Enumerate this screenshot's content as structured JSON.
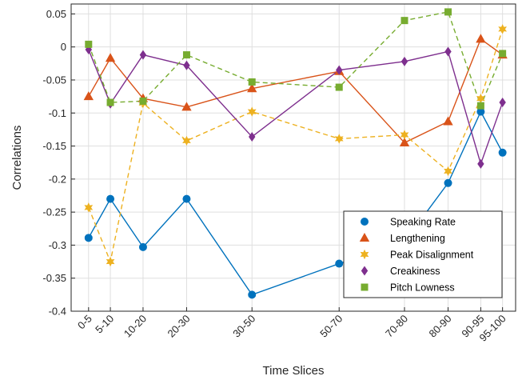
{
  "chart_data": {
    "type": "line",
    "title": "",
    "xlabel": "Time Slices",
    "ylabel": "Correlations",
    "categories": [
      "0-5",
      "5-10",
      "10-20",
      "20-30",
      "30-50",
      "50-70",
      "70-80",
      "80-90",
      "90-95",
      "95-100"
    ],
    "x": [
      2.5,
      7.5,
      15,
      25,
      40,
      60,
      75,
      85,
      92.5,
      97.5
    ],
    "ylim": [
      -0.4,
      0.065
    ],
    "xlim": [
      -1.5,
      100.5
    ],
    "yticks": [
      0.05,
      0,
      -0.05,
      -0.1,
      -0.15,
      -0.2,
      -0.25,
      -0.3,
      -0.35,
      -0.4
    ],
    "ytick_labels": [
      "0.05",
      "0",
      "-0.05",
      "-0.1",
      "-0.15",
      "-0.2",
      "-0.25",
      "-0.3",
      "-0.35",
      "-0.4"
    ],
    "grid": true,
    "legend_position": "bottom-right",
    "series": [
      {
        "name": "Speaking Rate",
        "color": "#0072BD",
        "marker": "circle",
        "line": "solid",
        "values": [
          -0.289,
          -0.23,
          -0.303,
          -0.23,
          -0.375,
          -0.328,
          -0.295,
          -0.206,
          -0.098,
          -0.16
        ]
      },
      {
        "name": "Lengthening",
        "color": "#D95319",
        "marker": "triangle",
        "line": "solid",
        "values": [
          -0.075,
          -0.017,
          -0.078,
          -0.091,
          -0.063,
          -0.037,
          -0.145,
          -0.113,
          0.012,
          -0.012
        ]
      },
      {
        "name": "Peak Disalignment",
        "color": "#EDB120",
        "marker": "hexagram",
        "line": "dashed",
        "values": [
          -0.243,
          -0.325,
          -0.085,
          -0.142,
          -0.098,
          -0.139,
          -0.133,
          -0.188,
          -0.078,
          0.027
        ]
      },
      {
        "name": "Creakiness",
        "color": "#7E2F8E",
        "marker": "diamond",
        "line": "solid",
        "values": [
          -0.004,
          -0.086,
          -0.012,
          -0.028,
          -0.136,
          -0.035,
          -0.022,
          -0.007,
          -0.177,
          -0.084
        ]
      },
      {
        "name": "Pitch Lowness",
        "color": "#77AC30",
        "marker": "square",
        "line": "dashed",
        "values": [
          0.004,
          -0.084,
          -0.082,
          -0.012,
          -0.053,
          -0.061,
          0.04,
          0.053,
          -0.089,
          -0.01
        ]
      }
    ]
  }
}
